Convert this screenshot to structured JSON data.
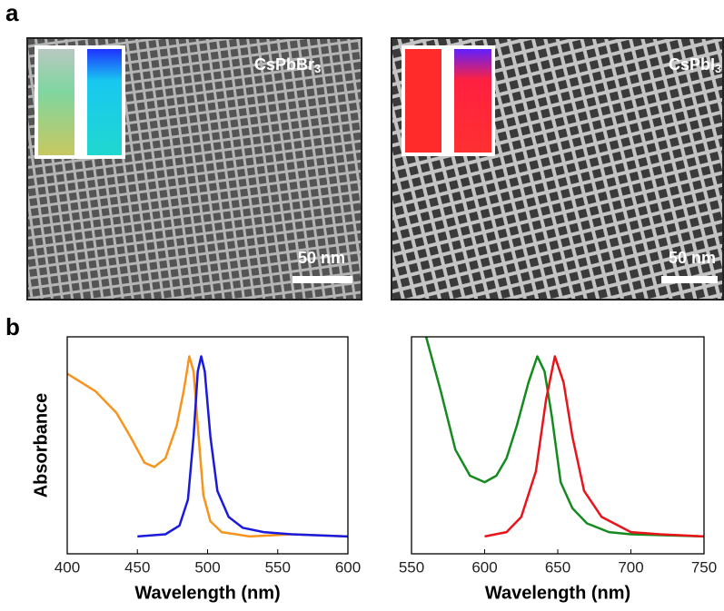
{
  "panel_labels": [
    "a",
    "b"
  ],
  "images": [
    {
      "label": {
        "formula": "CsPbBr",
        "subscript": "3"
      },
      "scale_bar": "50 nm"
    },
    {
      "label": {
        "formula": "CsPbI",
        "subscript": "3"
      },
      "scale_bar": "50 nm"
    }
  ],
  "chart_data": [
    {
      "type": "line",
      "xlabel": "Wavelength (nm)",
      "ylabel": "Absorbance",
      "xlim": [
        400,
        600
      ],
      "xticks": [
        400,
        450,
        500,
        550,
        600
      ],
      "ylim": [
        0,
        1
      ],
      "series": [
        {
          "color": "#f7941d",
          "x": [
            400,
            420,
            435,
            445,
            455,
            462,
            470,
            478,
            483,
            487,
            490,
            493,
            497,
            502,
            510,
            530,
            560,
            600
          ],
          "values": [
            0.83,
            0.75,
            0.65,
            0.54,
            0.42,
            0.4,
            0.44,
            0.59,
            0.75,
            0.91,
            0.84,
            0.59,
            0.27,
            0.15,
            0.1,
            0.08,
            0.09,
            0.08
          ]
        },
        {
          "color": "#1a1adc",
          "x": [
            450,
            470,
            480,
            486,
            490,
            493,
            495.5,
            498,
            502,
            507,
            515,
            525,
            540,
            560,
            600
          ],
          "values": [
            0.08,
            0.09,
            0.13,
            0.25,
            0.54,
            0.84,
            0.91,
            0.84,
            0.54,
            0.29,
            0.17,
            0.12,
            0.1,
            0.09,
            0.08
          ]
        }
      ]
    },
    {
      "type": "line",
      "xlabel": "Wavelength (nm)",
      "xlim": [
        550,
        750
      ],
      "xticks": [
        550,
        600,
        650,
        700,
        750
      ],
      "ylim": [
        0,
        1
      ],
      "series": [
        {
          "color": "#158a1e",
          "x": [
            560,
            570,
            580,
            590,
            600,
            608,
            615,
            622,
            630,
            636,
            641,
            646,
            652,
            660,
            670,
            685,
            700,
            750
          ],
          "values": [
            1.0,
            0.75,
            0.48,
            0.36,
            0.33,
            0.36,
            0.44,
            0.59,
            0.79,
            0.91,
            0.84,
            0.63,
            0.33,
            0.21,
            0.14,
            0.1,
            0.09,
            0.08
          ]
        },
        {
          "color": "#e8141a",
          "x": [
            600,
            615,
            625,
            635,
            642,
            648,
            654,
            660,
            668,
            680,
            700,
            720,
            750
          ],
          "values": [
            0.08,
            0.1,
            0.17,
            0.38,
            0.71,
            0.91,
            0.79,
            0.54,
            0.29,
            0.17,
            0.1,
            0.09,
            0.08
          ]
        }
      ]
    }
  ]
}
